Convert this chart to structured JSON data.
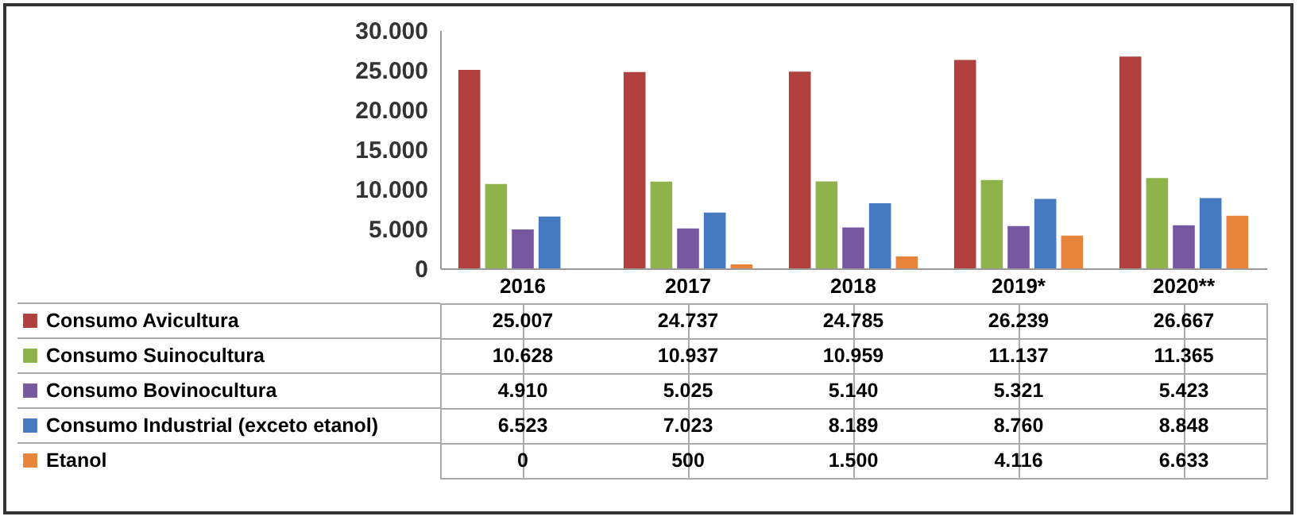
{
  "chart_data": {
    "type": "bar",
    "categories": [
      "2016",
      "2017",
      "2018",
      "2019*",
      "2020**"
    ],
    "series": [
      {
        "name": "Consumo Avicultura",
        "color": "#b0413e",
        "values": [
          25007,
          24737,
          24785,
          26239,
          26667
        ],
        "value_labels": [
          "25.007",
          "24.737",
          "24.785",
          "26.239",
          "26.667"
        ]
      },
      {
        "name": "Consumo Suinocultura",
        "color": "#8db34a",
        "values": [
          10628,
          10937,
          10959,
          11137,
          11365
        ],
        "value_labels": [
          "10.628",
          "10.937",
          "10.959",
          "11.137",
          "11.365"
        ]
      },
      {
        "name": "Consumo Bovinocultura",
        "color": "#7657a0",
        "values": [
          4910,
          5025,
          5140,
          5321,
          5423
        ],
        "value_labels": [
          "4.910",
          "5.025",
          "5.140",
          "5.321",
          "5.423"
        ]
      },
      {
        "name": "Consumo Industrial (exceto etanol)",
        "color": "#457ac0",
        "values": [
          6523,
          7023,
          8189,
          8760,
          8848
        ],
        "value_labels": [
          "6.523",
          "7.023",
          "8.189",
          "8.760",
          "8.848"
        ]
      },
      {
        "name": "Etanol",
        "color": "#e8843a",
        "values": [
          0,
          500,
          1500,
          4116,
          6633
        ],
        "value_labels": [
          "0",
          "500",
          "1.500",
          "4.116",
          "6.633"
        ]
      }
    ],
    "ylim": [
      0,
      30000
    ],
    "yticks": [
      0,
      {
        "value": 5000,
        "label": "5.000"
      },
      {
        "value": 10000,
        "label": "10.000"
      },
      {
        "value": 15000,
        "label": "15.000"
      },
      {
        "value": 20000,
        "label": "20.000"
      },
      {
        "value": 25000,
        "label": "25.000"
      },
      {
        "value": 30000,
        "label": "30.000"
      }
    ],
    "grid": false,
    "legend": "bottom"
  }
}
